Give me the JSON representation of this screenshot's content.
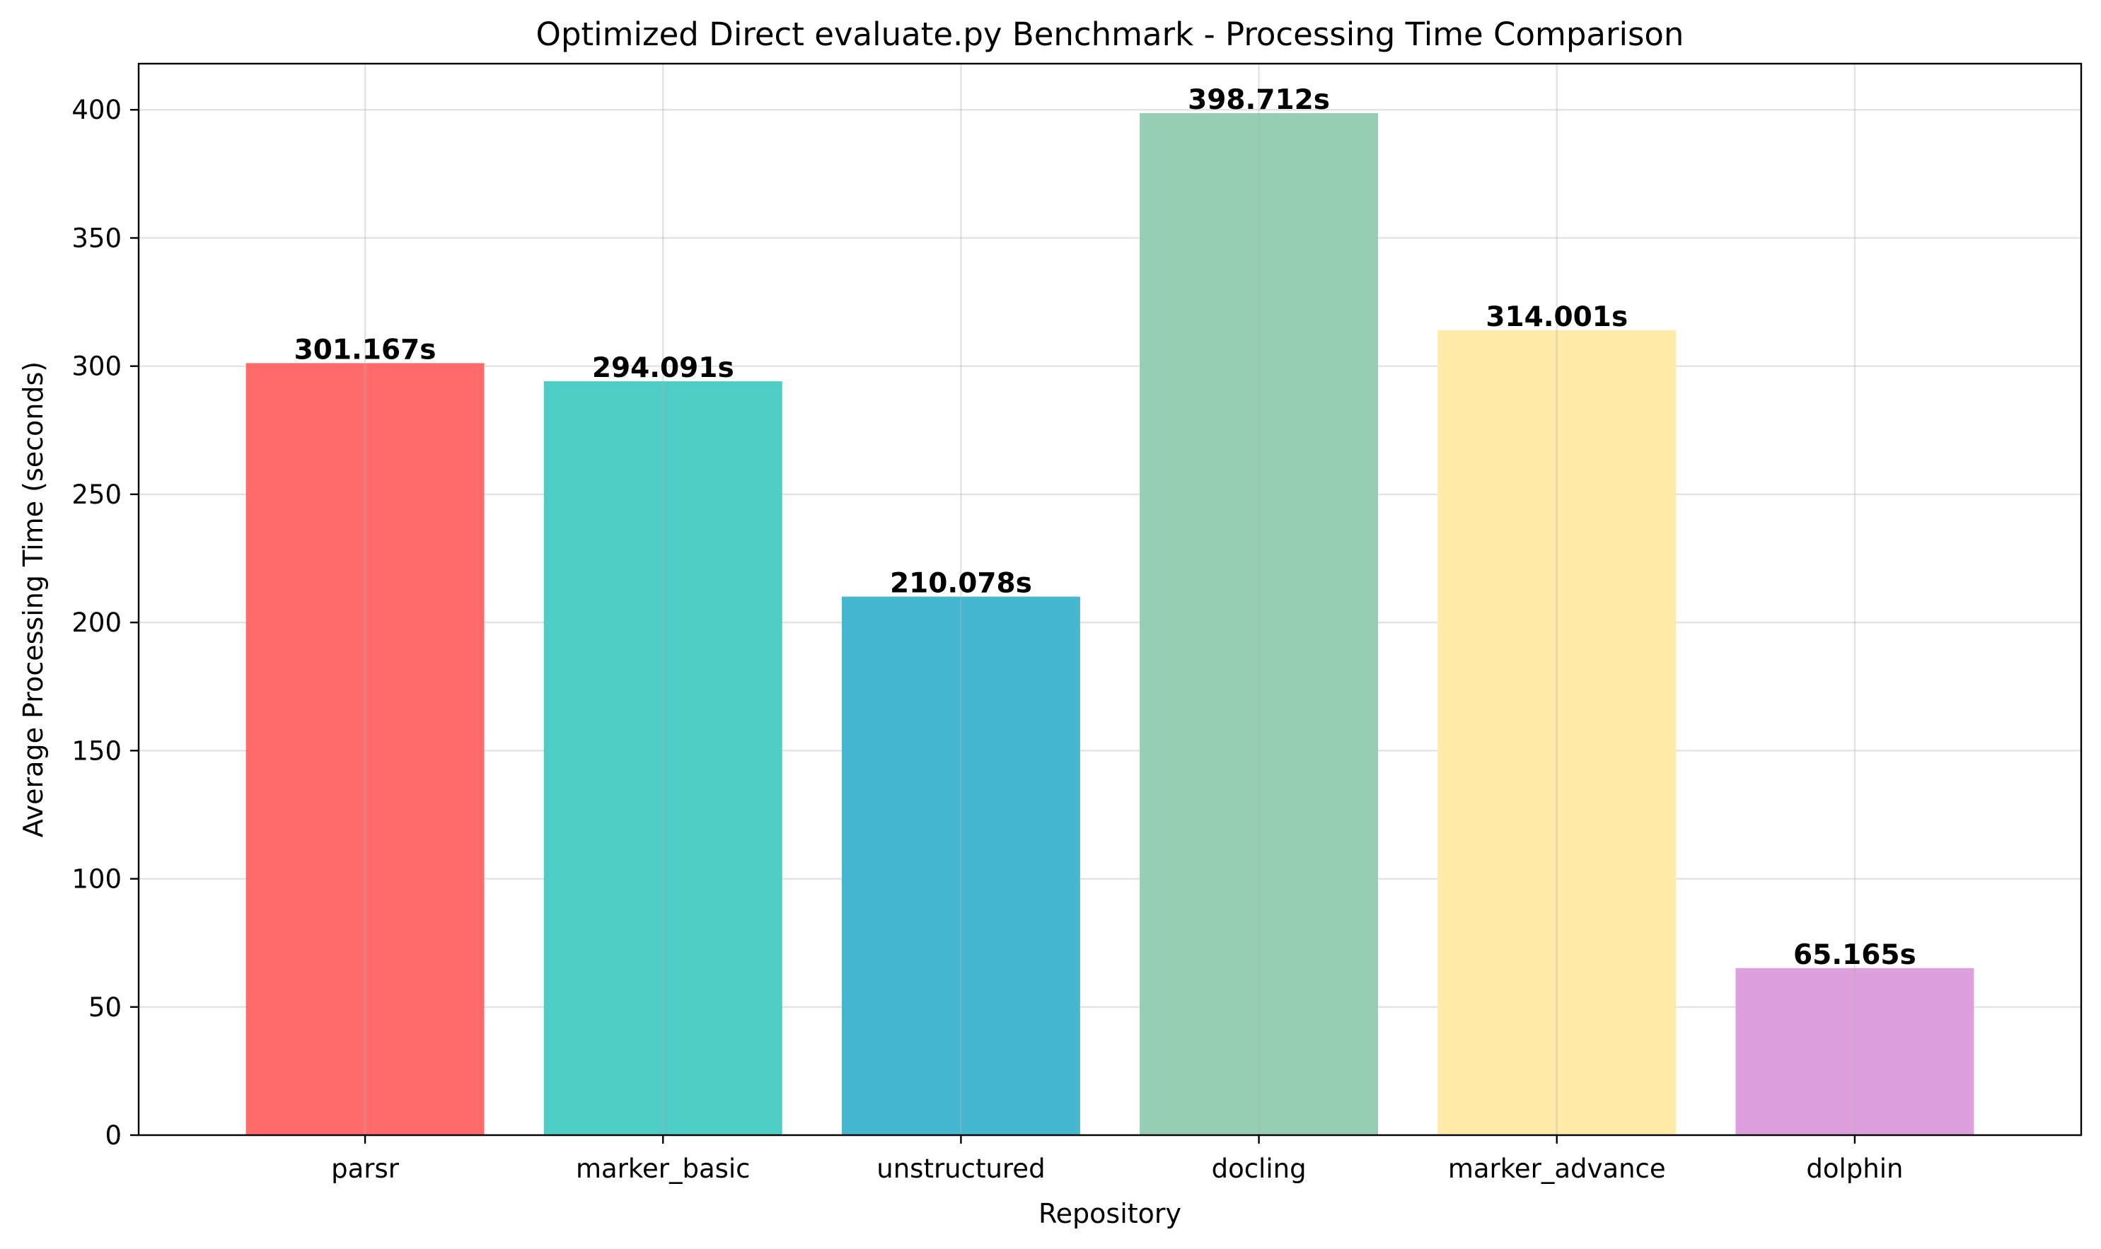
{
  "chart_data": {
    "type": "bar",
    "title": "Optimized Direct evaluate.py Benchmark - Processing Time Comparison",
    "xlabel": "Repository",
    "ylabel": "Average Processing Time (seconds)",
    "categories": [
      "parsr",
      "marker_basic",
      "unstructured",
      "docling",
      "marker_advance",
      "dolphin"
    ],
    "values": [
      301.167,
      294.091,
      210.078,
      398.712,
      314.001,
      65.165
    ],
    "value_labels": [
      "301.167s",
      "294.091s",
      "210.078s",
      "398.712s",
      "314.001s",
      "65.165s"
    ],
    "colors": [
      "#ff6b6b",
      "#4ecdc4",
      "#45b7d1",
      "#96ceb4",
      "#ffeaa7",
      "#dda0dd"
    ],
    "ylim": [
      0,
      418
    ],
    "yticks": [
      0,
      50,
      100,
      150,
      200,
      250,
      300,
      350,
      400
    ],
    "grid": true,
    "legend": "none"
  }
}
